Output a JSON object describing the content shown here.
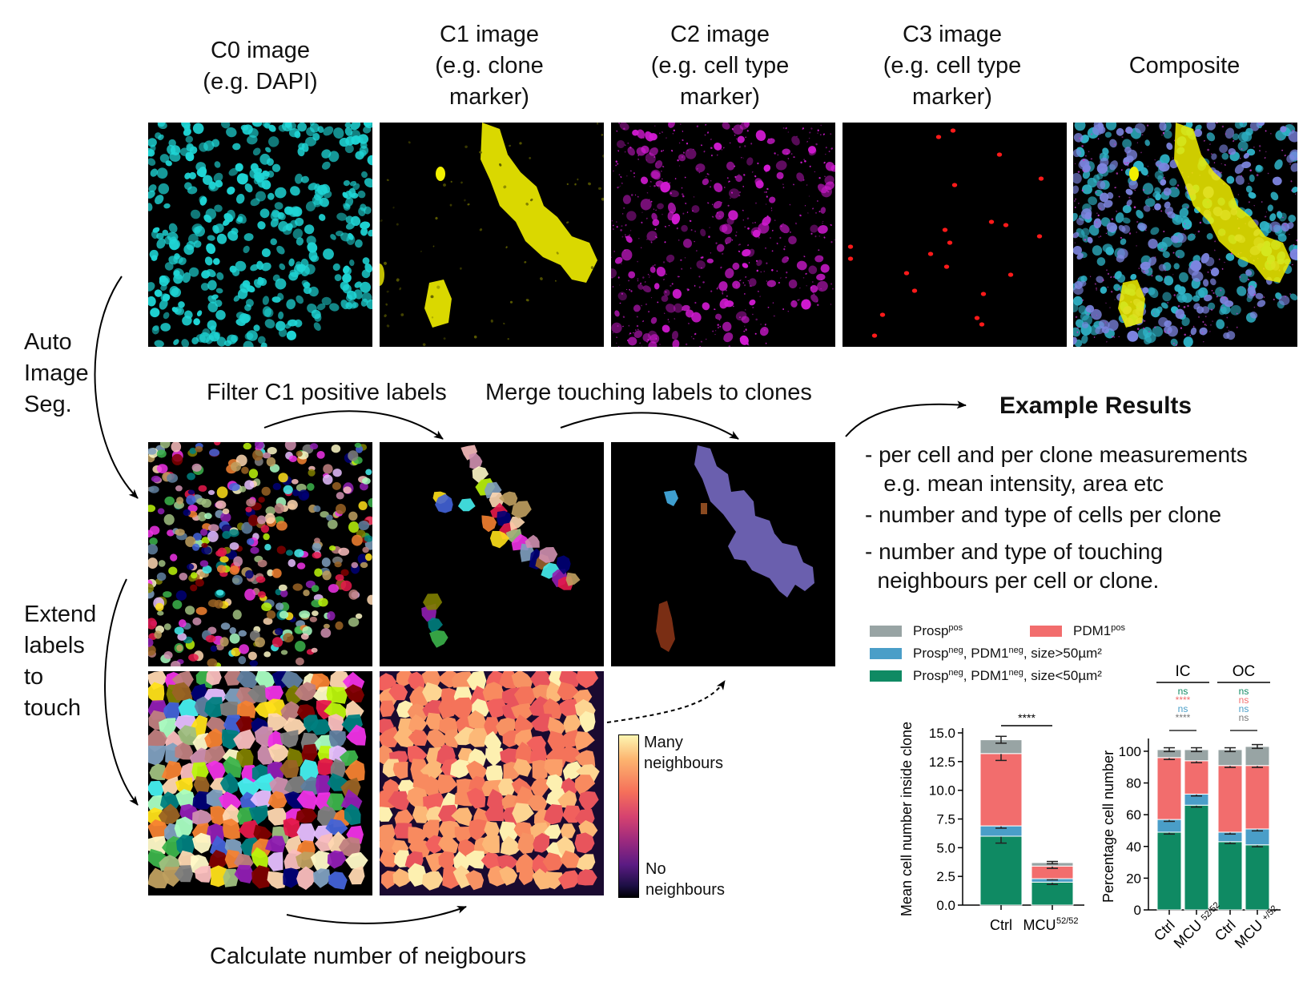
{
  "columns": [
    {
      "title": "C0 image\n(e.g. DAPI)",
      "color": "#1fd6d6"
    },
    {
      "title": "C1 image\n(e.g. clone\nmarker)",
      "color": "#f2f000"
    },
    {
      "title": "C2 image\n(e.g. cell type\nmarker)",
      "color": "#d21ad2"
    },
    {
      "title": "C3 image\n(e.g. cell type\nmarker)",
      "color": "#ff1a1a"
    },
    {
      "title": "Composite",
      "color": "#6f7bd6"
    }
  ],
  "side_labels": {
    "auto_seg": "Auto\nImage\nSeg.",
    "extend": "Extend\nlabels\nto\ntouch"
  },
  "steps": {
    "filter": "Filter C1 positive labels",
    "merge": "Merge touching labels to clones",
    "calculate": "Calculate number of neigbours"
  },
  "colorbar": {
    "top_label": "Many\nneighbours",
    "bottom_label": "No\nneighbours"
  },
  "results": {
    "title": "Example Results",
    "bullets": [
      "- per cell and per clone measurements\n   e.g. mean intensity, area etc",
      "- number and type of cells per clone",
      "- number and type of touching\n  neighbours per cell or clone."
    ]
  },
  "legend": [
    {
      "label": "Prosp",
      "sup": "pos",
      "rest": "",
      "color": "#98a4a4"
    },
    {
      "label": "PDM1",
      "sup": "pos",
      "rest": "",
      "color": "#f26d6d"
    },
    {
      "label": "Prosp",
      "sup": "neg",
      "rest": ", PDM1",
      "sup2": "neg",
      "rest2": ", size>50µm²",
      "color": "#4a9ec8"
    },
    {
      "label": "Prosp",
      "sup": "neg",
      "rest": ", PDM1",
      "sup2": "neg",
      "rest2": ", size<50µm²",
      "color": "#0f8a63"
    }
  ],
  "chart_data": [
    {
      "type": "bar",
      "stacked": true,
      "ylabel": "Mean cell number inside clone",
      "ylim": [
        0,
        15
      ],
      "yticks": [
        "0.0",
        "2.5",
        "5.0",
        "7.5",
        "10.0",
        "12.5",
        "15.0"
      ],
      "categories": [
        "Ctrl",
        "MCU"
      ],
      "category_sup": [
        "",
        "52/52"
      ],
      "series": [
        {
          "name": "Prosp neg, PDM1 neg, size<50µm²",
          "values": [
            6.0,
            2.0
          ],
          "color": "#0f8a63"
        },
        {
          "name": "Prosp neg, PDM1 neg, size>50µm²",
          "values": [
            0.9,
            0.3
          ],
          "color": "#4a9ec8"
        },
        {
          "name": "PDM1 pos",
          "values": [
            6.3,
            1.1
          ],
          "color": "#f26d6d"
        },
        {
          "name": "Prosp pos",
          "values": [
            1.2,
            0.3
          ],
          "color": "#98a4a4"
        }
      ],
      "errors": [
        [
          0.6,
          0.2
        ],
        [
          0.2,
          0.1
        ],
        [
          0.6,
          0.2
        ],
        [
          0.3,
          0.1
        ]
      ],
      "significance": "****"
    },
    {
      "type": "bar",
      "stacked": true,
      "ylabel": "Percentage cell number",
      "ylim": [
        0,
        105
      ],
      "yticks": [
        "0",
        "20",
        "40",
        "60",
        "80",
        "100"
      ],
      "groups": [
        "IC",
        "OC"
      ],
      "categories": [
        "Ctrl",
        "MCU",
        "Ctrl",
        "MCU"
      ],
      "category_sup": [
        "",
        "52/52",
        "",
        "+/52"
      ],
      "series": [
        {
          "name": "Prosp neg, PDM1 neg, size<50µm²",
          "values": [
            49,
            66,
            43,
            41
          ],
          "color": "#0f8a63"
        },
        {
          "name": "Prosp neg, PDM1 neg, size>50µm²",
          "values": [
            8,
            7,
            6,
            10
          ],
          "color": "#4a9ec8"
        },
        {
          "name": "PDM1 pos",
          "values": [
            39,
            21,
            42,
            40
          ],
          "color": "#f26d6d"
        },
        {
          "name": "Prosp pos",
          "values": [
            5,
            7,
            10,
            12
          ],
          "color": "#98a4a4"
        }
      ],
      "significance": {
        "IC": [
          {
            "text": "ns",
            "color": "#0f8a63"
          },
          {
            "text": "****",
            "color": "#f26d6d"
          },
          {
            "text": "ns",
            "color": "#4a9ec8"
          },
          {
            "text": "****",
            "color": "#777777"
          }
        ],
        "OC": [
          {
            "text": "ns",
            "color": "#0f8a63"
          },
          {
            "text": "ns",
            "color": "#f26d6d"
          },
          {
            "text": "ns",
            "color": "#4a9ec8"
          },
          {
            "text": "ns",
            "color": "#777777"
          }
        ]
      }
    }
  ]
}
